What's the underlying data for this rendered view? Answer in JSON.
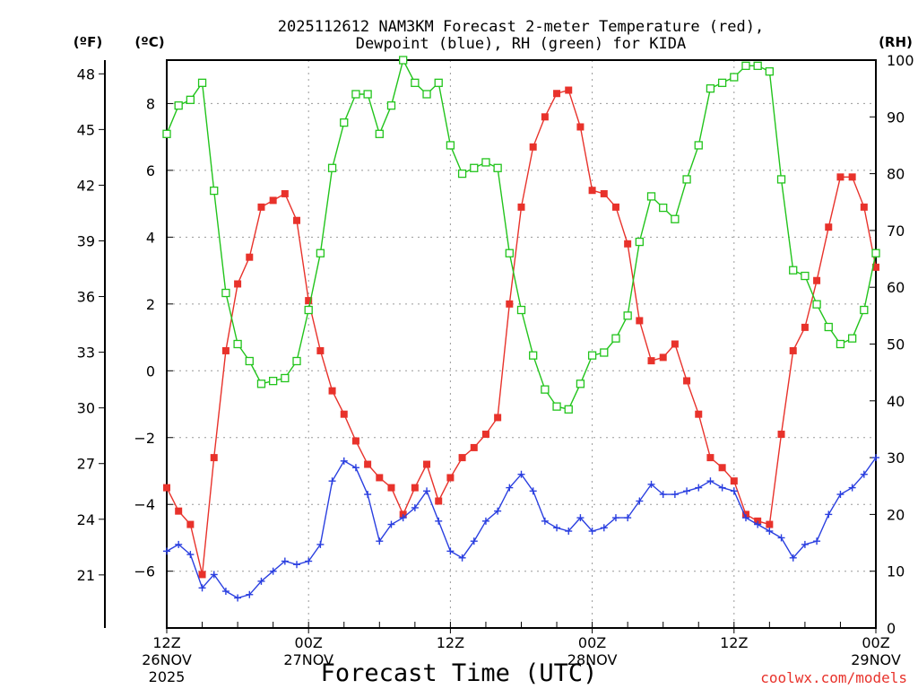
{
  "chart_data": {
    "type": "line",
    "title": [
      "2025112612 NAM3KM Forecast 2-meter Temperature (red),",
      "Dewpoint (blue), RH (green) for KIDA"
    ],
    "xlabel": "Forecast Time (UTC)",
    "credit": "coolwx.com/models",
    "units": {
      "fahrenheit": "(ºF)",
      "celsius": "(ºC)",
      "rh": "(RH)"
    },
    "x_range": [
      0,
      60
    ],
    "x_ticks": [
      {
        "x": 0,
        "label": [
          "12Z",
          "26NOV",
          "2025"
        ]
      },
      {
        "x": 12,
        "label": [
          "00Z",
          "27NOV"
        ]
      },
      {
        "x": 24,
        "label": [
          "12Z"
        ]
      },
      {
        "x": 36,
        "label": [
          "00Z",
          "28NOV"
        ]
      },
      {
        "x": 48,
        "label": [
          "12Z"
        ]
      },
      {
        "x": 60,
        "label": [
          "00Z",
          "29NOV"
        ]
      }
    ],
    "y_celsius": {
      "range": [
        -7.7,
        9.3
      ],
      "ticks": [
        -6,
        -4,
        -2,
        0,
        2,
        4,
        6,
        8
      ],
      "labels": [
        "−6",
        "−4",
        "−2",
        "0",
        "2",
        "4",
        "6",
        "8"
      ]
    },
    "y_fahrenheit": {
      "ticks": [
        21,
        24,
        27,
        30,
        33,
        36,
        39,
        42,
        45,
        48
      ],
      "labels": [
        "21",
        "24",
        "27",
        "30",
        "33",
        "36",
        "39",
        "42",
        "45",
        "48"
      ]
    },
    "y_rh": {
      "range": [
        0,
        100
      ],
      "ticks": [
        0,
        10,
        20,
        30,
        40,
        50,
        60,
        70,
        80,
        90,
        100
      ],
      "labels": [
        "0",
        "10",
        "20",
        "30",
        "40",
        "50",
        "60",
        "70",
        "80",
        "90",
        "100"
      ]
    },
    "series": [
      {
        "name": "Temperature",
        "axis": "celsius",
        "color": "#e8322b",
        "marker": "filled-square",
        "x": [
          0,
          1,
          2,
          3,
          4,
          5,
          6,
          7,
          8,
          9,
          10,
          11,
          12,
          13,
          14,
          15,
          16,
          17,
          18,
          19,
          20,
          21,
          22,
          23,
          24,
          25,
          26,
          27,
          28,
          29,
          30,
          31,
          32,
          33,
          34,
          35,
          36,
          37,
          38,
          39,
          40,
          41,
          42,
          43,
          44,
          45,
          46,
          47,
          48,
          49,
          50,
          51,
          52,
          53,
          54,
          55,
          56,
          57,
          58,
          59,
          60
        ],
        "values": [
          -3.5,
          -4.2,
          -4.6,
          -6.1,
          -2.6,
          0.6,
          2.6,
          3.4,
          4.9,
          5.1,
          5.3,
          4.5,
          2.1,
          0.6,
          -0.6,
          -1.3,
          -2.1,
          -2.8,
          -3.2,
          -3.5,
          -4.3,
          -3.5,
          -2.8,
          -3.9,
          -3.2,
          -2.6,
          -2.3,
          -1.9,
          -1.4,
          2.0,
          4.9,
          6.7,
          7.6,
          8.3,
          8.4,
          7.3,
          5.4,
          5.3,
          4.9,
          3.8,
          1.5,
          0.3,
          0.4,
          0.8,
          -0.3,
          -1.3,
          -2.6,
          -2.9,
          -3.3,
          -4.3,
          -4.5,
          -4.6,
          -1.9,
          0.6,
          1.3,
          2.7,
          4.3,
          5.8,
          5.8,
          4.9,
          3.1
        ]
      },
      {
        "name": "Dewpoint",
        "axis": "celsius",
        "color": "#2a3fe0",
        "marker": "plus",
        "x": [
          0,
          1,
          2,
          3,
          4,
          5,
          6,
          7,
          8,
          9,
          10,
          11,
          12,
          13,
          14,
          15,
          16,
          17,
          18,
          19,
          20,
          21,
          22,
          23,
          24,
          25,
          26,
          27,
          28,
          29,
          30,
          31,
          32,
          33,
          34,
          35,
          36,
          37,
          38,
          39,
          40,
          41,
          42,
          43,
          44,
          45,
          46,
          47,
          48,
          49,
          50,
          51,
          52,
          53,
          54,
          55,
          56,
          57,
          58,
          59,
          60
        ],
        "values": [
          -5.4,
          -5.2,
          -5.5,
          -6.5,
          -6.1,
          -6.6,
          -6.8,
          -6.7,
          -6.3,
          -6.0,
          -5.7,
          -5.8,
          -5.7,
          -5.2,
          -3.3,
          -2.7,
          -2.9,
          -3.7,
          -5.1,
          -4.6,
          -4.4,
          -4.1,
          -3.6,
          -4.5,
          -5.4,
          -5.6,
          -5.1,
          -4.5,
          -4.2,
          -3.5,
          -3.1,
          -3.6,
          -4.5,
          -4.7,
          -4.8,
          -4.4,
          -4.8,
          -4.7,
          -4.4,
          -4.4,
          -3.9,
          -3.4,
          -3.7,
          -3.7,
          -3.6,
          -3.5,
          -3.3,
          -3.5,
          -3.6,
          -4.4,
          -4.6,
          -4.8,
          -5.0,
          -5.6,
          -5.2,
          -5.1,
          -4.3,
          -3.7,
          -3.5,
          -3.1,
          -2.6
        ]
      },
      {
        "name": "RH",
        "axis": "rh",
        "color": "#22c41c",
        "marker": "open-square",
        "x": [
          0,
          1,
          2,
          3,
          4,
          5,
          6,
          7,
          8,
          9,
          10,
          11,
          12,
          13,
          14,
          15,
          16,
          17,
          18,
          19,
          20,
          21,
          22,
          23,
          24,
          25,
          26,
          27,
          28,
          29,
          30,
          31,
          32,
          33,
          34,
          35,
          36,
          37,
          38,
          39,
          40,
          41,
          42,
          43,
          44,
          45,
          46,
          47,
          48,
          49,
          50,
          51,
          52,
          53,
          54,
          55,
          56,
          57,
          58,
          59,
          60
        ],
        "values": [
          87,
          92,
          93,
          96,
          77,
          59,
          50,
          47,
          43,
          43.5,
          44,
          47,
          56,
          66,
          81,
          89,
          94,
          94,
          87,
          92,
          100,
          96,
          94,
          96,
          85,
          80,
          81,
          82,
          81,
          66,
          56,
          48,
          42,
          39,
          38.5,
          43,
          48,
          48.5,
          51,
          55,
          68,
          76,
          74,
          72,
          79,
          85,
          95,
          96,
          97,
          99,
          99,
          98,
          79,
          63,
          62,
          57,
          53,
          50,
          51,
          56,
          66
        ]
      }
    ]
  }
}
